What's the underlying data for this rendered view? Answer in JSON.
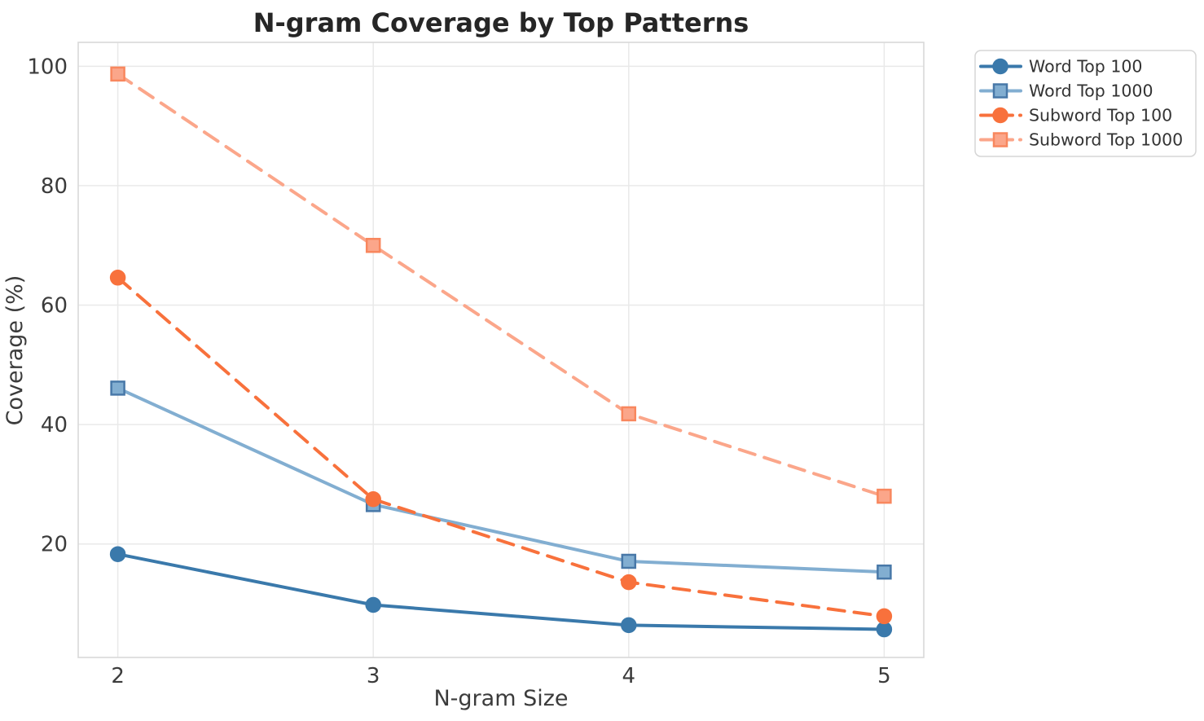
{
  "figure": {
    "title": "N-gram Coverage by Top Patterns",
    "xlabel": "N-gram Size",
    "ylabel": "Coverage (%)"
  },
  "chart_data": {
    "type": "line",
    "title": "N-gram Coverage by Top Patterns",
    "xlabel": "N-gram Size",
    "ylabel": "Coverage (%)",
    "x": [
      2,
      3,
      4,
      5
    ],
    "x_tick_labels": [
      "2",
      "3",
      "4",
      "5"
    ],
    "y_ticks": [
      20,
      40,
      60,
      80,
      100
    ],
    "y_tick_labels": [
      "20",
      "40",
      "60",
      "80",
      "100"
    ],
    "xlim": [
      1.845,
      5.155
    ],
    "ylim": [
      1,
      104
    ],
    "grid": true,
    "legend_position": "outside-top-right",
    "series": [
      {
        "name": "Word Top 100",
        "values": [
          18.3,
          9.8,
          6.4,
          5.7
        ],
        "color": "#3a79ab",
        "marker": "circle",
        "marker_edge": "#3a79ab",
        "line_style": "solid"
      },
      {
        "name": "Word Top 1000",
        "values": [
          46.1,
          26.6,
          17.1,
          15.3
        ],
        "color": "#82aed1",
        "marker": "square",
        "marker_edge": "#4878a8",
        "line_style": "solid"
      },
      {
        "name": "Subword Top 100",
        "values": [
          64.6,
          27.5,
          13.6,
          7.9
        ],
        "color": "#f8713c",
        "marker": "circle",
        "marker_edge": "#f8713c",
        "line_style": "dashed"
      },
      {
        "name": "Subword Top 1000",
        "values": [
          98.7,
          70.0,
          41.8,
          28.0
        ],
        "color": "#fba68a",
        "marker": "square",
        "marker_edge": "#f8875e",
        "line_style": "dashed"
      }
    ],
    "style": {
      "grid_color": "#e9e9e9",
      "spine_color": "#d9d9d9",
      "background": "#ffffff",
      "title_color": "#262626",
      "text_color": "#3b3b3b",
      "legend_border": "#d5d5d5",
      "line_width": 4,
      "dash_pattern": "20 12"
    }
  }
}
